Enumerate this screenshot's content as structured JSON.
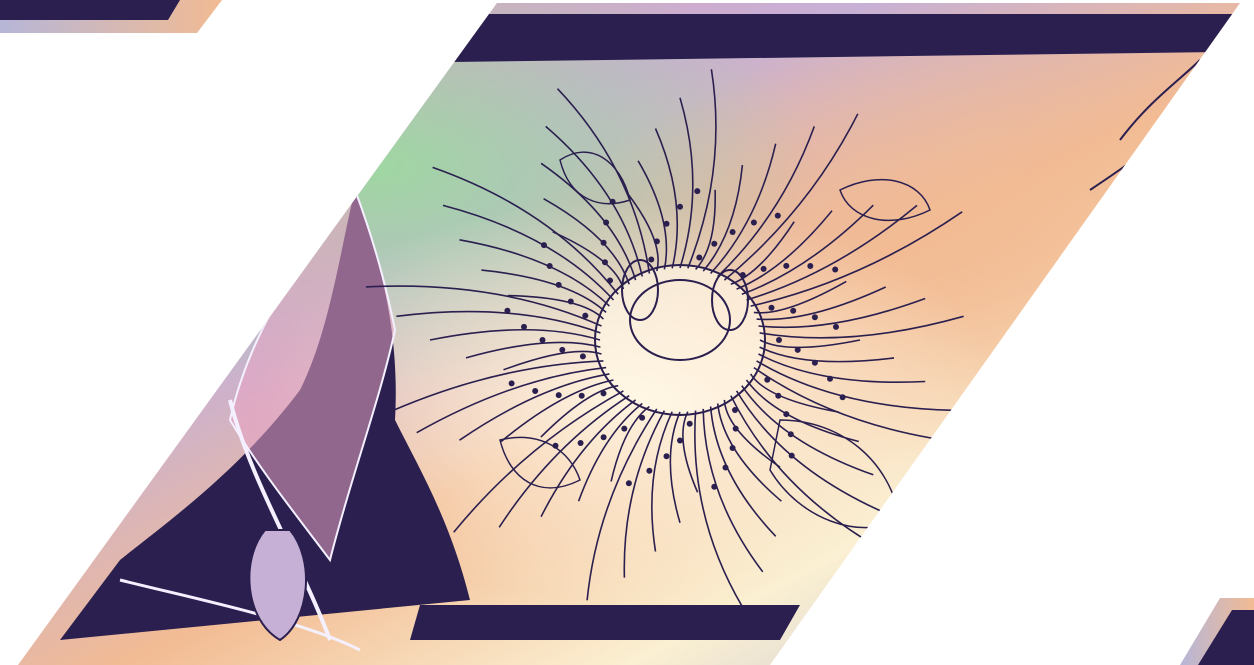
{
  "artwork": {
    "subject": "passion flower",
    "style": "pen-and-ink line illustration over pastel gradient",
    "colors": {
      "ink": "#2a1f4f",
      "line_light": "#f4f0ff",
      "peach": "#f2bb93",
      "pink": "#e79bb8",
      "green": "#9cd9a0",
      "lavender": "#b6b6d8",
      "cream": "#fbf0d2",
      "background": "#ffffff"
    },
    "fragments": [
      "top-left-corner-fragment",
      "main-parallelogram-panel",
      "bottom-right-corner-fragment"
    ]
  }
}
